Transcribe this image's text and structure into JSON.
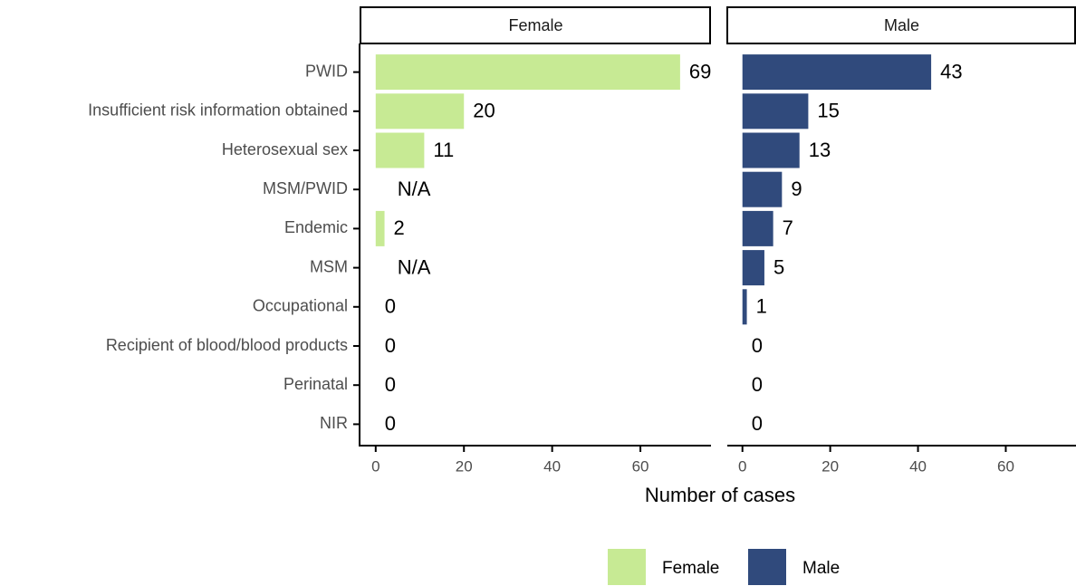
{
  "chart_data": {
    "type": "bar",
    "orientation": "horizontal",
    "xlabel": "Number of cases",
    "categories": [
      "PWID",
      "Insufficient risk information obtained",
      "Heterosexual sex",
      "MSM/PWID",
      "Endemic",
      "MSM",
      "Occupational",
      "Recipient of blood/blood products",
      "Perinatal",
      "NIR"
    ],
    "series": [
      {
        "name": "Female",
        "color": "#c7ea94",
        "values": [
          69,
          20,
          11,
          null,
          2,
          null,
          0,
          0,
          0,
          0
        ],
        "value_labels": [
          null,
          null,
          null,
          "N/A",
          null,
          "N/A",
          null,
          null,
          null,
          null
        ]
      },
      {
        "name": "Male",
        "color": "#304a7c",
        "values": [
          43,
          15,
          13,
          9,
          7,
          5,
          1,
          0,
          0,
          0
        ]
      }
    ],
    "xlim": [
      -3.45,
      76
    ],
    "xticks": [
      0,
      20,
      40,
      60
    ],
    "legend": "bottom"
  }
}
